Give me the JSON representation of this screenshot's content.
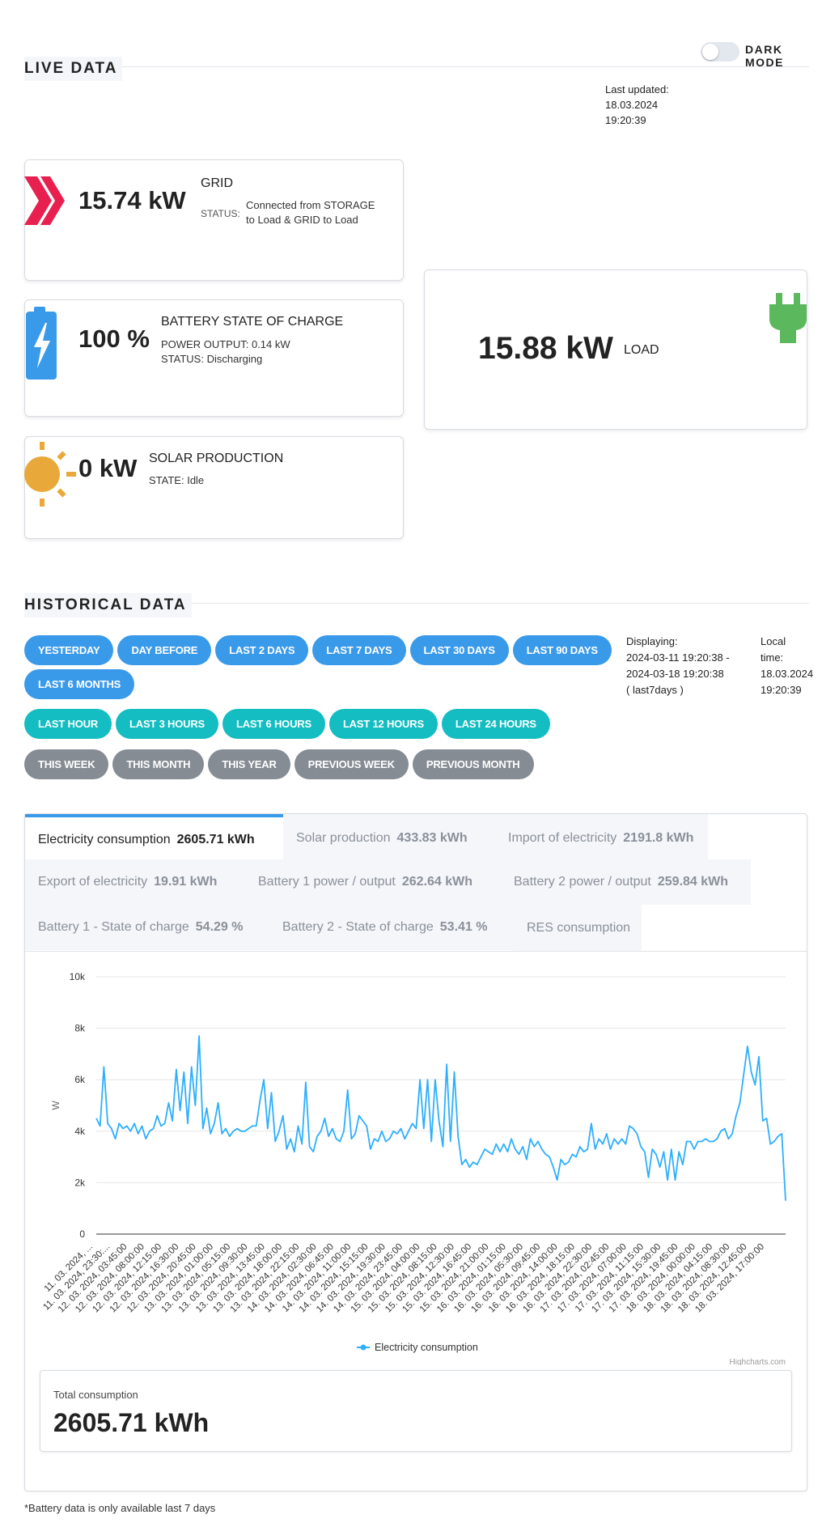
{
  "header": {
    "dark_mode_label": "DARK MODE",
    "dark_mode_on": false
  },
  "live": {
    "title": "LIVE DATA",
    "last_updated_label": "Last updated:",
    "last_updated_date": "18.03.2024",
    "last_updated_time": "19:20:39",
    "grid": {
      "value": "15.74 kW",
      "title": "GRID",
      "status_label": "STATUS:",
      "status_line1": "Connected from STORAGE",
      "status_line2": "to Load & GRID to Load",
      "icon": "chevron-right-icon"
    },
    "battery": {
      "value": "100 %",
      "title": "BATTERY STATE OF CHARGE",
      "power_label": "POWER OUTPUT:",
      "power_value": "0.14 kW",
      "status_label": "STATUS:",
      "status_value": "Discharging",
      "icon": "battery-bolt-icon"
    },
    "solar": {
      "value": "0 kW",
      "title": "SOLAR PRODUCTION",
      "state_label": "STATE:",
      "state_value": "Idle",
      "icon": "sun-icon"
    },
    "load": {
      "value": "15.88 kW",
      "title": "LOAD",
      "icon": "plug-icon"
    }
  },
  "historical": {
    "title": "HISTORICAL DATA",
    "buttons_row1": [
      "YESTERDAY",
      "DAY BEFORE",
      "LAST 2 DAYS",
      "LAST 7 DAYS",
      "LAST 30 DAYS",
      "LAST 90 DAYS"
    ],
    "buttons_row2": [
      "LAST 6 MONTHS"
    ],
    "buttons_row3": [
      "LAST HOUR",
      "LAST 3 HOURS",
      "LAST 6 HOURS",
      "LAST 12 HOURS",
      "LAST 24 HOURS"
    ],
    "buttons_row4": [
      "THIS WEEK",
      "THIS MONTH",
      "THIS YEAR",
      "PREVIOUS WEEK",
      "PREVIOUS MONTH"
    ],
    "displaying_label": "Displaying:",
    "displaying_from": "2024-03-11 19:20:38 -",
    "displaying_to": "2024-03-18 19:20:38",
    "displaying_range": "( last7days )",
    "local_label_1": "Local",
    "local_label_2": "time:",
    "local_date": "18.03.2024",
    "local_time": "19:20:39"
  },
  "tabs": [
    {
      "label": "Electricity consumption",
      "value": "2605.71 kWh",
      "active": true
    },
    {
      "label": "Solar production",
      "value": "433.83 kWh"
    },
    {
      "label": "Import of electricity",
      "value": "2191.8 kWh"
    },
    {
      "label": "Export of electricity",
      "value": "19.91 kWh"
    },
    {
      "label": "Battery 1 power / output",
      "value": "262.64 kWh"
    },
    {
      "label": "Battery 2 power / output",
      "value": "259.84 kWh"
    },
    {
      "label": "Battery 1 - State of charge",
      "value": "54.29 %"
    },
    {
      "label": "Battery 2 - State of charge",
      "value": "53.41 %"
    },
    {
      "label": "RES consumption",
      "value": ""
    }
  ],
  "chart_data": {
    "type": "line",
    "title": "",
    "xlabel": "",
    "ylabel": "W",
    "ylim": [
      0,
      10000
    ],
    "y_ticks": [
      "0",
      "2k",
      "4k",
      "6k",
      "8k",
      "10k"
    ],
    "grid": true,
    "legend": "bottom-center",
    "credits": "Highcharts.com",
    "color": "#2caffe",
    "x_tick_labels": [
      "11. 03. 2024, ...",
      "11. 03. 2024, 23:30:...",
      "12. 03. 2024, 03:45:00",
      "12. 03. 2024, 08:00:00",
      "12. 03. 2024, 12:15:00",
      "12. 03. 2024, 16:30:00",
      "12. 03. 2024, 20:45:00",
      "13. 03. 2024, 01:00:00",
      "13. 03. 2024, 05:15:00",
      "13. 03. 2024, 09:30:00",
      "13. 03. 2024, 13:45:00",
      "13. 03. 2024, 18:00:00",
      "13. 03. 2024, 22:15:00",
      "14. 03. 2024, 02:30:00",
      "14. 03. 2024, 06:45:00",
      "14. 03. 2024, 11:00:00",
      "14. 03. 2024, 15:15:00",
      "14. 03. 2024, 19:30:00",
      "14. 03. 2024, 23:45:00",
      "15. 03. 2024, 04:00:00",
      "15. 03. 2024, 08:15:00",
      "15. 03. 2024, 12:30:00",
      "15. 03. 2024, 16:45:00",
      "15. 03. 2024, 21:00:00",
      "16. 03. 2024, 01:15:00",
      "16. 03. 2024, 05:30:00",
      "16. 03. 2024, 09:45:00",
      "16. 03. 2024, 14:00:00",
      "16. 03. 2024, 18:15:00",
      "16. 03. 2024, 22:30:00",
      "17. 03. 2024, 02:45:00",
      "17. 03. 2024, 07:00:00",
      "17. 03. 2024, 11:15:00",
      "17. 03. 2024, 15:30:00",
      "17. 03. 2024, 19:45:00",
      "18. 03. 2024, 00:00:00",
      "18. 03. 2024, 04:15:00",
      "18. 03. 2024, 08:30:00",
      "18. 03. 2024, 12:45:00",
      "18. 03. 2024, 17:00:00"
    ],
    "series": [
      {
        "name": "Electricity consumption",
        "values": [
          4500,
          4200,
          6500,
          4300,
          4100,
          3700,
          4300,
          4100,
          4200,
          4000,
          4300,
          3900,
          4200,
          3700,
          4000,
          4100,
          4600,
          4200,
          4300,
          5100,
          4400,
          6400,
          4800,
          6300,
          4300,
          6500,
          5000,
          7700,
          4100,
          4900,
          3900,
          4300,
          5100,
          3900,
          4100,
          3800,
          4000,
          4100,
          4000,
          4000,
          4100,
          4200,
          4200,
          5200,
          6000,
          4100,
          5500,
          3600,
          4000,
          4600,
          3300,
          3700,
          3200,
          4200,
          3500,
          5900,
          3400,
          3200,
          3800,
          4000,
          4500,
          3800,
          4100,
          3700,
          3600,
          4000,
          5600,
          3700,
          3900,
          4600,
          4400,
          4200,
          3300,
          3700,
          3600,
          4000,
          3600,
          3700,
          4000,
          3900,
          4100,
          3700,
          4000,
          4300,
          4100,
          6000,
          4100,
          6000,
          3600,
          6000,
          4400,
          3400,
          6600,
          3600,
          6300,
          3800,
          2700,
          2900,
          2600,
          2800,
          2700,
          3000,
          3300,
          3200,
          3100,
          3500,
          3200,
          3500,
          3200,
          3700,
          3300,
          3100,
          3400,
          2900,
          3700,
          3400,
          3600,
          3300,
          3100,
          3000,
          2600,
          2100,
          2900,
          2700,
          2800,
          3100,
          3000,
          3400,
          3200,
          3300,
          4300,
          3300,
          3700,
          3500,
          3900,
          3300,
          3700,
          3500,
          3700,
          3500,
          4200,
          4100,
          3900,
          3400,
          3200,
          2200,
          3300,
          3100,
          2600,
          3200,
          2100,
          3300,
          2100,
          3200,
          2700,
          3600,
          3600,
          3300,
          3600,
          3600,
          3700,
          3600,
          3600,
          3700,
          4000,
          4100,
          3700,
          3900,
          4600,
          5100,
          6200,
          7300,
          6300,
          5800,
          6900,
          4400,
          4500,
          3500,
          3600,
          3800,
          3900,
          1300
        ]
      }
    ]
  },
  "total": {
    "label": "Total consumption",
    "value": "2605.71 kWh"
  },
  "footnote": "*Battery data is only available last 7 days"
}
